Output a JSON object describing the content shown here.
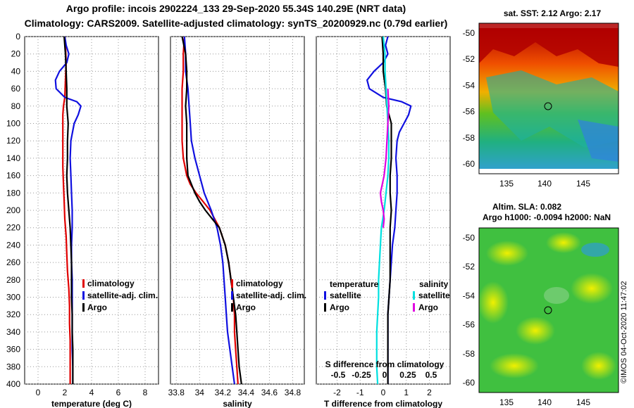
{
  "header": {
    "title_line1": "Argo profile: incois 2902224_133 29-Sep-2020 55.34S 140.29E (NRT data)",
    "title_line2": "Climatology: CARS2009. Satellite-adjusted climatology: synTS_20200929.nc (0.79d earlier)"
  },
  "colors": {
    "climatology": "#e00000",
    "satellite": "#1010e0",
    "argo": "#000000",
    "cyan": "#00e0e0",
    "magenta": "#e000e0"
  },
  "chart_data": [
    {
      "type": "line",
      "name": "temperature-profile",
      "xlabel": "temperature (deg C)",
      "ylabel": "depth",
      "xlim": [
        -1,
        9
      ],
      "ylim": [
        0,
        400
      ],
      "xticks": [
        0,
        2,
        4,
        6,
        8
      ],
      "yticks": [
        0,
        20,
        40,
        60,
        80,
        100,
        120,
        140,
        160,
        180,
        200,
        220,
        240,
        260,
        280,
        300,
        320,
        340,
        360,
        380,
        400
      ],
      "legend": [
        "climatology",
        "satellite-adj. clim.",
        "Argo"
      ],
      "series": [
        {
          "name": "climatology",
          "color": "#e00000",
          "depth": [
            0,
            10,
            30,
            50,
            70,
            80,
            90,
            110,
            130,
            150,
            170,
            190,
            210,
            230,
            250,
            270,
            290,
            310,
            330,
            350,
            370,
            390,
            400
          ],
          "values": [
            2.0,
            2.05,
            2.1,
            2.05,
            2.0,
            1.9,
            1.85,
            1.85,
            1.85,
            1.85,
            1.9,
            1.95,
            2.0,
            2.1,
            2.15,
            2.2,
            2.3,
            2.35,
            2.35,
            2.4,
            2.4,
            2.4,
            2.4
          ]
        },
        {
          "name": "satellite-adj. clim.",
          "color": "#1010e0",
          "depth": [
            0,
            10,
            20,
            30,
            40,
            50,
            60,
            70,
            75,
            80,
            90,
            100,
            120,
            140,
            160,
            180,
            200,
            220,
            240,
            260,
            280,
            300,
            320,
            340,
            360,
            380,
            400
          ],
          "values": [
            2.0,
            2.1,
            2.3,
            2.15,
            1.6,
            1.3,
            1.35,
            2.0,
            2.9,
            3.2,
            3.0,
            2.7,
            2.45,
            2.4,
            2.45,
            2.5,
            2.55,
            2.55,
            2.5,
            2.5,
            2.55,
            2.55,
            2.55,
            2.55,
            2.55,
            2.6,
            2.6
          ]
        },
        {
          "name": "Argo",
          "color": "#000000",
          "depth": [
            0,
            10,
            20,
            40,
            60,
            80,
            100,
            120,
            140,
            160,
            180,
            200,
            220,
            240,
            260,
            280,
            300,
            320,
            340,
            360,
            380,
            400
          ],
          "values": [
            1.95,
            2.0,
            2.05,
            2.1,
            2.15,
            2.15,
            2.25,
            2.2,
            2.2,
            2.15,
            2.2,
            2.3,
            2.4,
            2.45,
            2.5,
            2.5,
            2.5,
            2.55,
            2.55,
            2.6,
            2.6,
            2.6
          ]
        }
      ]
    },
    {
      "type": "line",
      "name": "salinity-profile",
      "xlabel": "salinity",
      "ylabel": "depth",
      "xlim": [
        33.75,
        34.9
      ],
      "ylim": [
        0,
        400
      ],
      "xticks": [
        33.8,
        34,
        34.2,
        34.4,
        34.6,
        34.8
      ],
      "legend": [
        "climatology",
        "satellite-adj. clim.",
        "Argo"
      ],
      "series": [
        {
          "name": "climatology",
          "color": "#e00000",
          "depth": [
            0,
            20,
            40,
            60,
            80,
            100,
            120,
            140,
            160,
            170,
            180,
            190,
            200,
            220,
            240,
            260,
            280,
            300,
            320,
            340,
            360,
            380,
            400
          ],
          "values": [
            33.87,
            33.86,
            33.86,
            33.85,
            33.85,
            33.85,
            33.85,
            33.86,
            33.89,
            33.92,
            33.97,
            34.03,
            34.09,
            34.17,
            34.22,
            34.25,
            34.27,
            34.29,
            34.3,
            34.3,
            34.31,
            34.32,
            34.33
          ]
        },
        {
          "name": "satellite-adj. clim.",
          "color": "#1010e0",
          "depth": [
            0,
            20,
            40,
            60,
            80,
            100,
            120,
            140,
            160,
            180,
            200,
            220,
            240,
            260,
            280,
            300,
            320,
            340,
            360,
            380,
            400
          ],
          "values": [
            33.87,
            33.88,
            33.88,
            33.9,
            33.91,
            33.92,
            33.93,
            33.96,
            34.0,
            34.04,
            34.1,
            34.15,
            34.18,
            34.2,
            34.21,
            34.22,
            34.23,
            34.24,
            34.26,
            34.28,
            34.3
          ]
        },
        {
          "name": "Argo",
          "color": "#000000",
          "depth": [
            0,
            20,
            40,
            60,
            80,
            100,
            120,
            140,
            160,
            170,
            180,
            190,
            200,
            210,
            220,
            240,
            260,
            280,
            300,
            320,
            340,
            360,
            380,
            400
          ],
          "values": [
            33.85,
            33.88,
            33.89,
            33.89,
            33.88,
            33.89,
            33.89,
            33.89,
            33.9,
            33.93,
            33.96,
            34.0,
            34.05,
            34.11,
            34.17,
            34.22,
            34.25,
            34.27,
            34.29,
            34.31,
            34.32,
            34.33,
            34.34,
            34.36
          ]
        }
      ]
    },
    {
      "type": "line",
      "name": "difference-profile",
      "xlabel": "T difference from climatology",
      "x2label": "S difference from climatology",
      "xlim": [
        -2.9,
        2.9
      ],
      "ylim": [
        0,
        400
      ],
      "xticks": [
        -2,
        -1,
        0,
        1,
        2
      ],
      "x2ticks_values": [
        -0.5,
        -0.25,
        0,
        0.25,
        0.5
      ],
      "x2ticks_labels": [
        "-0.5",
        "-0.25",
        "0",
        "0.25",
        "0.5"
      ],
      "legend_temperature_title": "temperature",
      "legend_salinity_title": "salinity",
      "legend": [
        "satellite",
        "Argo",
        "satellite",
        "Argo"
      ],
      "series": [
        {
          "name": "temperature satellite",
          "color": "#1010e0",
          "depth": [
            0,
            10,
            20,
            30,
            40,
            50,
            60,
            70,
            75,
            80,
            90,
            100,
            110,
            120,
            140,
            160,
            180,
            200,
            220,
            240,
            260,
            280,
            300,
            320,
            340,
            360,
            380,
            400
          ],
          "values": [
            0.2,
            0.1,
            0.2,
            0.0,
            -0.4,
            -0.7,
            -0.6,
            0.0,
            0.8,
            1.2,
            1.1,
            0.9,
            0.7,
            0.6,
            0.55,
            0.6,
            0.6,
            0.55,
            0.5,
            0.4,
            0.35,
            0.3,
            0.25,
            0.2,
            0.2,
            0.2,
            0.2,
            0.2
          ]
        },
        {
          "name": "temperature Argo",
          "color": "#000000",
          "depth": [
            0,
            20,
            40,
            60,
            80,
            100,
            120,
            140,
            160,
            180,
            200,
            220,
            240,
            260,
            280,
            300,
            320,
            340,
            360,
            380,
            400
          ],
          "values": [
            -0.05,
            0.0,
            0.0,
            0.1,
            0.15,
            0.35,
            0.35,
            0.35,
            0.3,
            0.3,
            0.35,
            0.3,
            0.3,
            0.3,
            0.3,
            0.25,
            0.2,
            0.2,
            0.2,
            0.2,
            0.2
          ]
        },
        {
          "name": "salinity satellite",
          "color": "#00e0e0",
          "depth": [
            0,
            20,
            40,
            60,
            80,
            100,
            120,
            140,
            160,
            180,
            200,
            220,
            240,
            260,
            280,
            300,
            320,
            340,
            360,
            380,
            400
          ],
          "values": [
            0.0,
            0.02,
            0.02,
            0.03,
            0.04,
            0.05,
            0.06,
            0.06,
            0.05,
            0.03,
            0.01,
            -0.02,
            -0.03,
            -0.04,
            -0.05,
            -0.05,
            -0.06,
            -0.07,
            -0.07,
            -0.07,
            -0.06
          ]
        },
        {
          "name": "salinity Argo",
          "color": "#e000e0",
          "depth": [
            60,
            80,
            100,
            120,
            140,
            160,
            170,
            180,
            190,
            200,
            210,
            220
          ],
          "values": [
            0.05,
            0.06,
            0.05,
            0.04,
            0.03,
            0.01,
            -0.01,
            -0.03,
            -0.02,
            0.0,
            0.01,
            0.0
          ]
        }
      ]
    }
  ],
  "maps": {
    "sst": {
      "title": "sat. SST: 2.12 Argo: 2.17",
      "ylabels": [
        "-50",
        "-52",
        "-54",
        "-56",
        "-58",
        "-60"
      ],
      "xlabels": [
        "135",
        "140",
        "145"
      ]
    },
    "sla": {
      "title_line1": "Altim. SLA: 0.082",
      "title_line2": "Argo h1000: -0.0094 h2000: NaN",
      "ylabels": [
        "-50",
        "-52",
        "-54",
        "-56",
        "-58",
        "-60"
      ],
      "xlabels": [
        "135",
        "140",
        "145"
      ]
    }
  },
  "footer": {
    "credit": "©IMOS 04-Oct-2020 11:47:02"
  }
}
